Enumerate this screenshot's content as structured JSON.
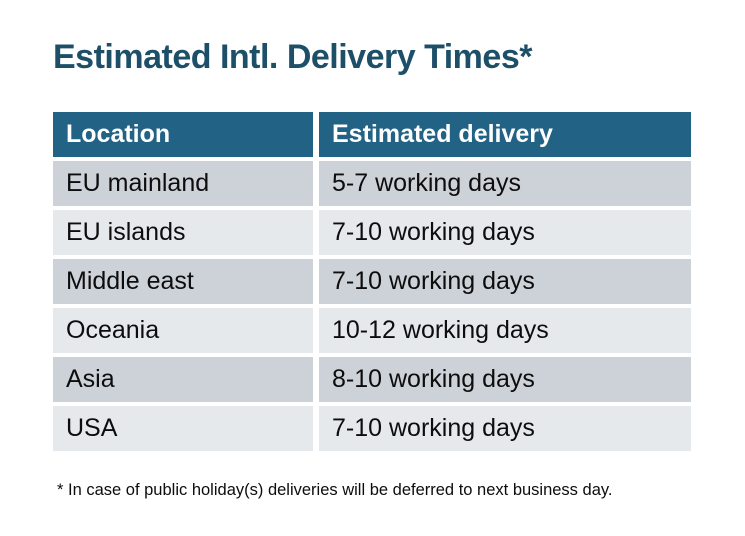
{
  "title": "Estimated Intl. Delivery Times*",
  "table": {
    "headers": [
      "Location",
      "Estimated delivery"
    ],
    "rows": [
      {
        "location": "EU mainland",
        "delivery": "5-7 working days"
      },
      {
        "location": "EU islands",
        "delivery": "7-10 working days"
      },
      {
        "location": "Middle east",
        "delivery": "7-10 working days"
      },
      {
        "location": "Oceania",
        "delivery": "10-12 working days"
      },
      {
        "location": "Asia",
        "delivery": "8-10 working days"
      },
      {
        "location": "USA",
        "delivery": "7-10 working days"
      }
    ]
  },
  "footnote": "* In case of public holiday(s) deliveries will be deferred to next business day.",
  "colors": {
    "title_text": "#1d5068",
    "header_bg": "#226285",
    "header_text": "#ffffff",
    "row_odd_bg": "#cdd1d8",
    "row_even_bg": "#e6e9ec",
    "cell_text": "#0d0d0d",
    "page_bg": "#ffffff"
  }
}
